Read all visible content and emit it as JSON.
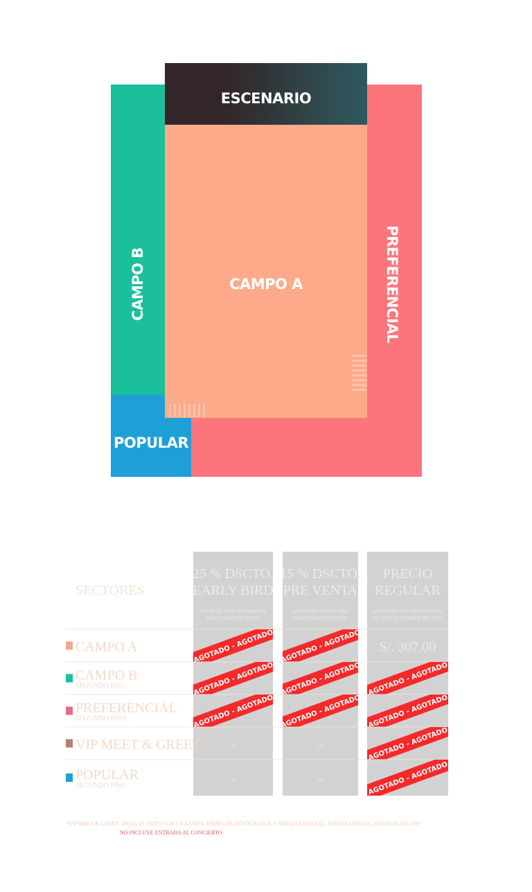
{
  "map": {
    "stage": "ESCENARIO",
    "campo_a": "CAMPO A",
    "campo_b": "CAMPO B",
    "preferencial": "PREFERENCIAL",
    "popular": "POPULAR"
  },
  "table": {
    "header": "SECTORES",
    "sold_out_label": "AGOTADO - AGOTADO - AGOTADO - AGOTADO",
    "columns": [
      {
        "title": [
          "25 % DSCTO.",
          "EARLY BIRD"
        ],
        "sub": [
          "DESDE EL 29 DE NOVIEMBRE",
          "HASTA AGOTAR STOCK"
        ]
      },
      {
        "title": [
          "15 % DSCTO.",
          "PRE VENTA"
        ],
        "sub": [
          "AGOTANDO EARLY BIRD",
          "HASTA AGOTAR STOCK"
        ]
      },
      {
        "title": [
          "PRECIO",
          "REGULAR"
        ],
        "sub": [
          "AGOTANDO PRE VENTA HASTA",
          "EL 29 DE SETIEMBRE DEL 2025"
        ]
      }
    ],
    "rows": [
      {
        "name": "CAMPO A",
        "color": "#f0a890",
        "cells": [
          null,
          null,
          "S/. 307.00"
        ],
        "sold_out": [
          true,
          true,
          false
        ]
      },
      {
        "name": "CAMPO B",
        "sub": "SEGUNDO PISO",
        "color": "#1bbf9c",
        "cells": [
          null,
          null,
          null
        ],
        "sold_out": [
          true,
          true,
          true
        ]
      },
      {
        "name": "PREFERENCIAL",
        "sub": "SEGUNDO PISO",
        "color": "#e07080",
        "cells": [
          null,
          null,
          null
        ],
        "sold_out": [
          true,
          true,
          true
        ]
      },
      {
        "name": "VIP MEET & GREET",
        "color": "#b08070",
        "cells": [
          "-",
          "-",
          null
        ],
        "sold_out": [
          false,
          false,
          true
        ]
      },
      {
        "name": "POPULAR",
        "sub": "SEGUNDO PISO",
        "color": "#1e9fd8",
        "cells": [
          "-",
          "-",
          null
        ],
        "sold_out": [
          false,
          false,
          true
        ]
      }
    ]
  },
  "footnote": {
    "label": "*VIP MEET & GREET:",
    "text": "INCLUYE FOTO CON LA BANDA, FIRMA DE AUTÓGRAFOS, CAMISETA OFICIAL, POSTER OFICIAL, CREDENCIAL VIP",
    "note": "NO INCLUYE ENTRADA AL CONCIERTO"
  }
}
